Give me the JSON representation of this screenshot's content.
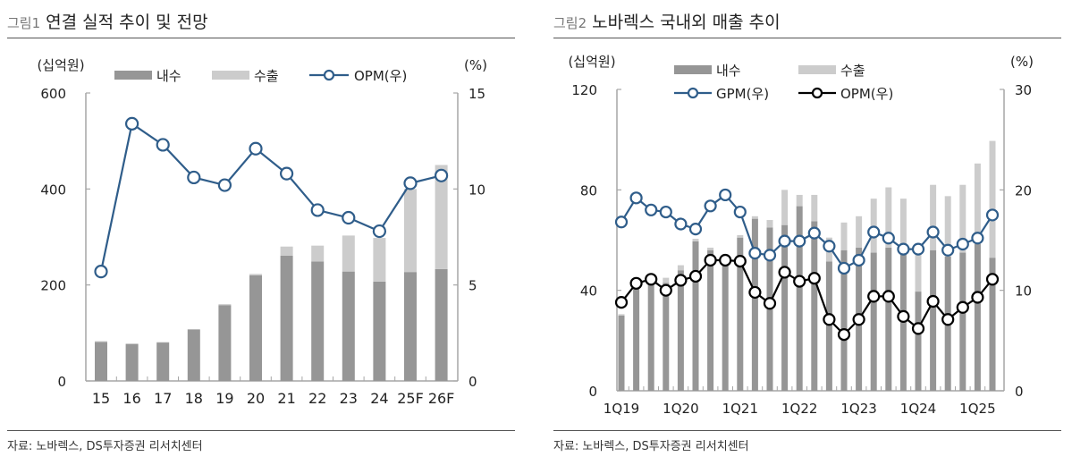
{
  "figures": [
    {
      "number": "그림1",
      "title": "연결 실적 추이 및 전망",
      "source": "자료: 노바렉스, DS투자증권 리서치센터"
    },
    {
      "number": "그림2",
      "title": "노바렉스 국내외 매출 추이",
      "source": "자료: 노바렉스, DS투자증권 리서치센터"
    }
  ],
  "colors": {
    "domestic": "#969696",
    "export": "#cccccc",
    "gpm": "#2f5d8a",
    "opm1": "#2f5d8a",
    "opm2": "#000000",
    "axis": "#a6a6a6"
  },
  "chart_data": [
    {
      "type": "bar",
      "stacked": true,
      "title": "연결 실적 추이 및 전망",
      "ylabel": "(십억원)",
      "y2label": "(%)",
      "ylim": [
        0,
        600
      ],
      "yticks": [
        "0",
        "200",
        "400",
        "600"
      ],
      "y2lim": [
        0,
        15
      ],
      "y2ticks": [
        "0",
        "5",
        "10",
        "15"
      ],
      "legend_position": "top",
      "legend": [
        "내수",
        "수출",
        "OPM(우)"
      ],
      "categories": [
        "15",
        "16",
        "17",
        "18",
        "19",
        "20",
        "21",
        "22",
        "23",
        "24",
        "25F",
        "26F"
      ],
      "series": [
        {
          "name": "내수",
          "type": "bar",
          "axis": "left",
          "values": [
            81,
            77,
            80,
            107,
            158,
            220,
            261,
            249,
            228,
            207,
            227,
            233
          ]
        },
        {
          "name": "수출",
          "type": "bar",
          "axis": "left",
          "values": [
            2,
            1,
            1,
            1,
            2,
            3,
            19,
            33,
            75,
            91,
            173,
            217
          ]
        },
        {
          "name": "OPM(우)",
          "type": "line",
          "axis": "right",
          "values": [
            5.7,
            13.4,
            12.3,
            10.6,
            10.2,
            12.1,
            10.8,
            8.9,
            8.5,
            7.8,
            10.3,
            10.7
          ]
        }
      ]
    },
    {
      "type": "bar",
      "stacked": true,
      "title": "노바렉스 국내외 매출 추이",
      "ylabel": "(십억원)",
      "y2label": "(%)",
      "ylim": [
        0,
        120
      ],
      "yticks": [
        "0",
        "40",
        "80",
        "120"
      ],
      "y2lim": [
        0,
        30
      ],
      "y2ticks": [
        "0",
        "10",
        "20",
        "30"
      ],
      "legend_position": "top",
      "legend": [
        "내수",
        "수출",
        "GPM(우)",
        "OPM(우)"
      ],
      "categories": [
        "1Q19",
        "2Q19",
        "3Q19",
        "4Q19",
        "1Q20",
        "2Q20",
        "3Q20",
        "4Q20",
        "1Q21",
        "2Q21",
        "3Q21",
        "4Q21",
        "1Q22",
        "2Q22",
        "3Q22",
        "4Q22",
        "1Q23",
        "2Q23",
        "3Q23",
        "4Q23",
        "1Q24",
        "2Q24",
        "3Q24",
        "4Q24",
        "1Q25",
        "2Q25"
      ],
      "xtick_labels": [
        "1Q19",
        "1Q20",
        "1Q21",
        "1Q22",
        "1Q23",
        "1Q24",
        "1Q25"
      ],
      "series": [
        {
          "name": "내수",
          "type": "bar",
          "axis": "left",
          "values": [
            30,
            41,
            44,
            43,
            48,
            59.5,
            56,
            53,
            61,
            68.5,
            65,
            66,
            73.5,
            67.5,
            51.5,
            56,
            57,
            55,
            57,
            54.5,
            39.5,
            56,
            53.5,
            55,
            58.5,
            53
          ]
        },
        {
          "name": "수출",
          "type": "bar",
          "axis": "left",
          "values": [
            0.5,
            1,
            1,
            2,
            2,
            1,
            1,
            1,
            1,
            1,
            3,
            14,
            4.5,
            10.5,
            9.5,
            11,
            12.5,
            21.5,
            24,
            22,
            16,
            26,
            24,
            27,
            32,
            46.5
          ]
        },
        {
          "name": "GPM(우)",
          "type": "line",
          "axis": "right",
          "values": [
            16.8,
            19.2,
            18.0,
            17.8,
            16.6,
            16.1,
            18.4,
            19.5,
            17.8,
            13.7,
            13.5,
            14.9,
            14.9,
            15.7,
            14.4,
            12.2,
            13.0,
            15.8,
            15.2,
            14.1,
            14.1,
            15.8,
            14.0,
            14.6,
            15.2,
            17.5
          ]
        },
        {
          "name": "OPM(우)",
          "type": "line",
          "axis": "right",
          "values": [
            8.8,
            10.7,
            11.1,
            10.0,
            11.0,
            11.4,
            13.0,
            13.0,
            12.9,
            9.8,
            8.7,
            11.8,
            10.9,
            11.2,
            7.1,
            5.6,
            7.1,
            9.4,
            9.4,
            7.4,
            6.2,
            8.9,
            7.1,
            8.3,
            9.3,
            11.1
          ]
        }
      ]
    }
  ]
}
